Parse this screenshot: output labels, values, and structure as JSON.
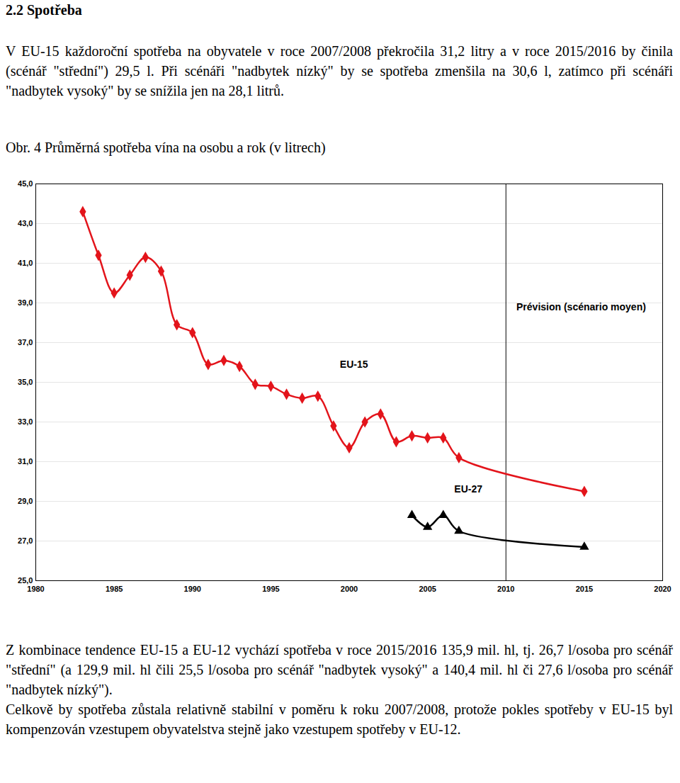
{
  "document": {
    "heading": "2.2 Spotřeba",
    "paragraphs_before": [
      "V EU-15 každoroční spotřeba na obyvatele v roce 2007/2008 překročila 31,2 litry a v roce 2015/2016 by činila (scénář \"střední\") 29,5 l. Při scénáři \"nadbytek nízký\" by se spotřeba zmenšila na 30,6 l, zatímco při scénáři \"nadbytek vysoký\" by se snížila jen na 28,1 litrů."
    ],
    "caption": "Obr. 4 Průměrná spotřeba vína na osobu a rok (v litrech)",
    "paragraphs_after": [
      "Z kombinace tendence EU-15 a EU-12 vychází spotřeba v roce 2015/2016 135,9 mil. hl, tj. 26,7 l/osoba pro scénář \"střední\" (a 129,9 mil. hl čili 25,5 l/osoba pro scénář \"nadbytek vysoký\" a 140,4 mil. hl či 27,6 l/osoba pro scénář \"nadbytek nízký\").",
      "Celkově by spotřeba zůstala relativně stabilní v poměru k roku 2007/2008, protože pokles spotřeby v EU-15 byl kompenzován vzestupem obyvatelstva stejně jako vzestupem spotřeby v EU-12."
    ]
  },
  "chart_data": {
    "type": "line",
    "series": [
      {
        "name": "EU-15",
        "color": "#e3141b",
        "marker": "diamond",
        "x": [
          1983,
          1984,
          1985,
          1986,
          1987,
          1988,
          1989,
          1990,
          1991,
          1992,
          1993,
          1994,
          1995,
          1996,
          1997,
          1998,
          1999,
          2000,
          2001,
          2002,
          2003,
          2004,
          2005,
          2006,
          2007,
          2015
        ],
        "values": [
          43.6,
          41.4,
          39.5,
          40.4,
          41.3,
          40.6,
          37.9,
          37.5,
          35.9,
          36.1,
          35.8,
          34.9,
          34.8,
          34.4,
          34.2,
          34.3,
          32.8,
          31.7,
          33.0,
          33.4,
          32.0,
          32.3,
          32.2,
          32.2,
          31.2,
          29.5
        ]
      },
      {
        "name": "EU-27",
        "color": "#000000",
        "marker": "triangle",
        "x": [
          2004,
          2005,
          2006,
          2007,
          2015
        ],
        "values": [
          28.3,
          27.7,
          28.3,
          27.5,
          26.7
        ]
      }
    ],
    "annotations": [
      {
        "text": "EU-15",
        "x": 2000.3,
        "y": 35.9
      },
      {
        "text": "EU-27",
        "x": 2007.6,
        "y": 29.6
      },
      {
        "text": "Prévision (scénario moyen)",
        "x": 2014.8,
        "y": 38.8
      }
    ],
    "forecast_from": 2010,
    "xlim": [
      1980,
      2020
    ],
    "xticks": [
      1980,
      1985,
      1990,
      1995,
      2000,
      2005,
      2010,
      2015,
      2020
    ],
    "ylim": [
      25,
      45
    ],
    "yticks": [
      {
        "value": 25,
        "label": "25,0"
      },
      {
        "value": 27,
        "label": "27,0"
      },
      {
        "value": 29,
        "label": "29,0"
      },
      {
        "value": 31,
        "label": "31,0"
      },
      {
        "value": 33,
        "label": "33,0"
      },
      {
        "value": 35,
        "label": "35,0"
      },
      {
        "value": 37,
        "label": "37,0"
      },
      {
        "value": 39,
        "label": "39,0"
      },
      {
        "value": 41,
        "label": "41,0"
      },
      {
        "value": 43,
        "label": "43,0"
      },
      {
        "value": 45,
        "label": "45,0"
      }
    ],
    "grid": true
  }
}
